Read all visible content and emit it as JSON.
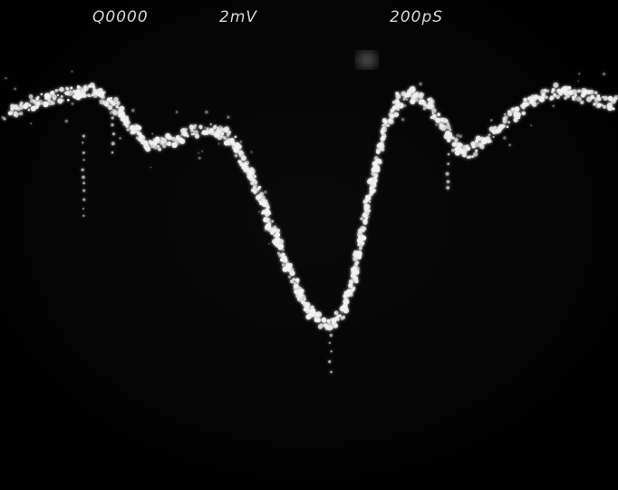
{
  "header": {
    "label": "Q0000",
    "volts_per_div": "2mV",
    "time_per_div": "200pS"
  }
}
